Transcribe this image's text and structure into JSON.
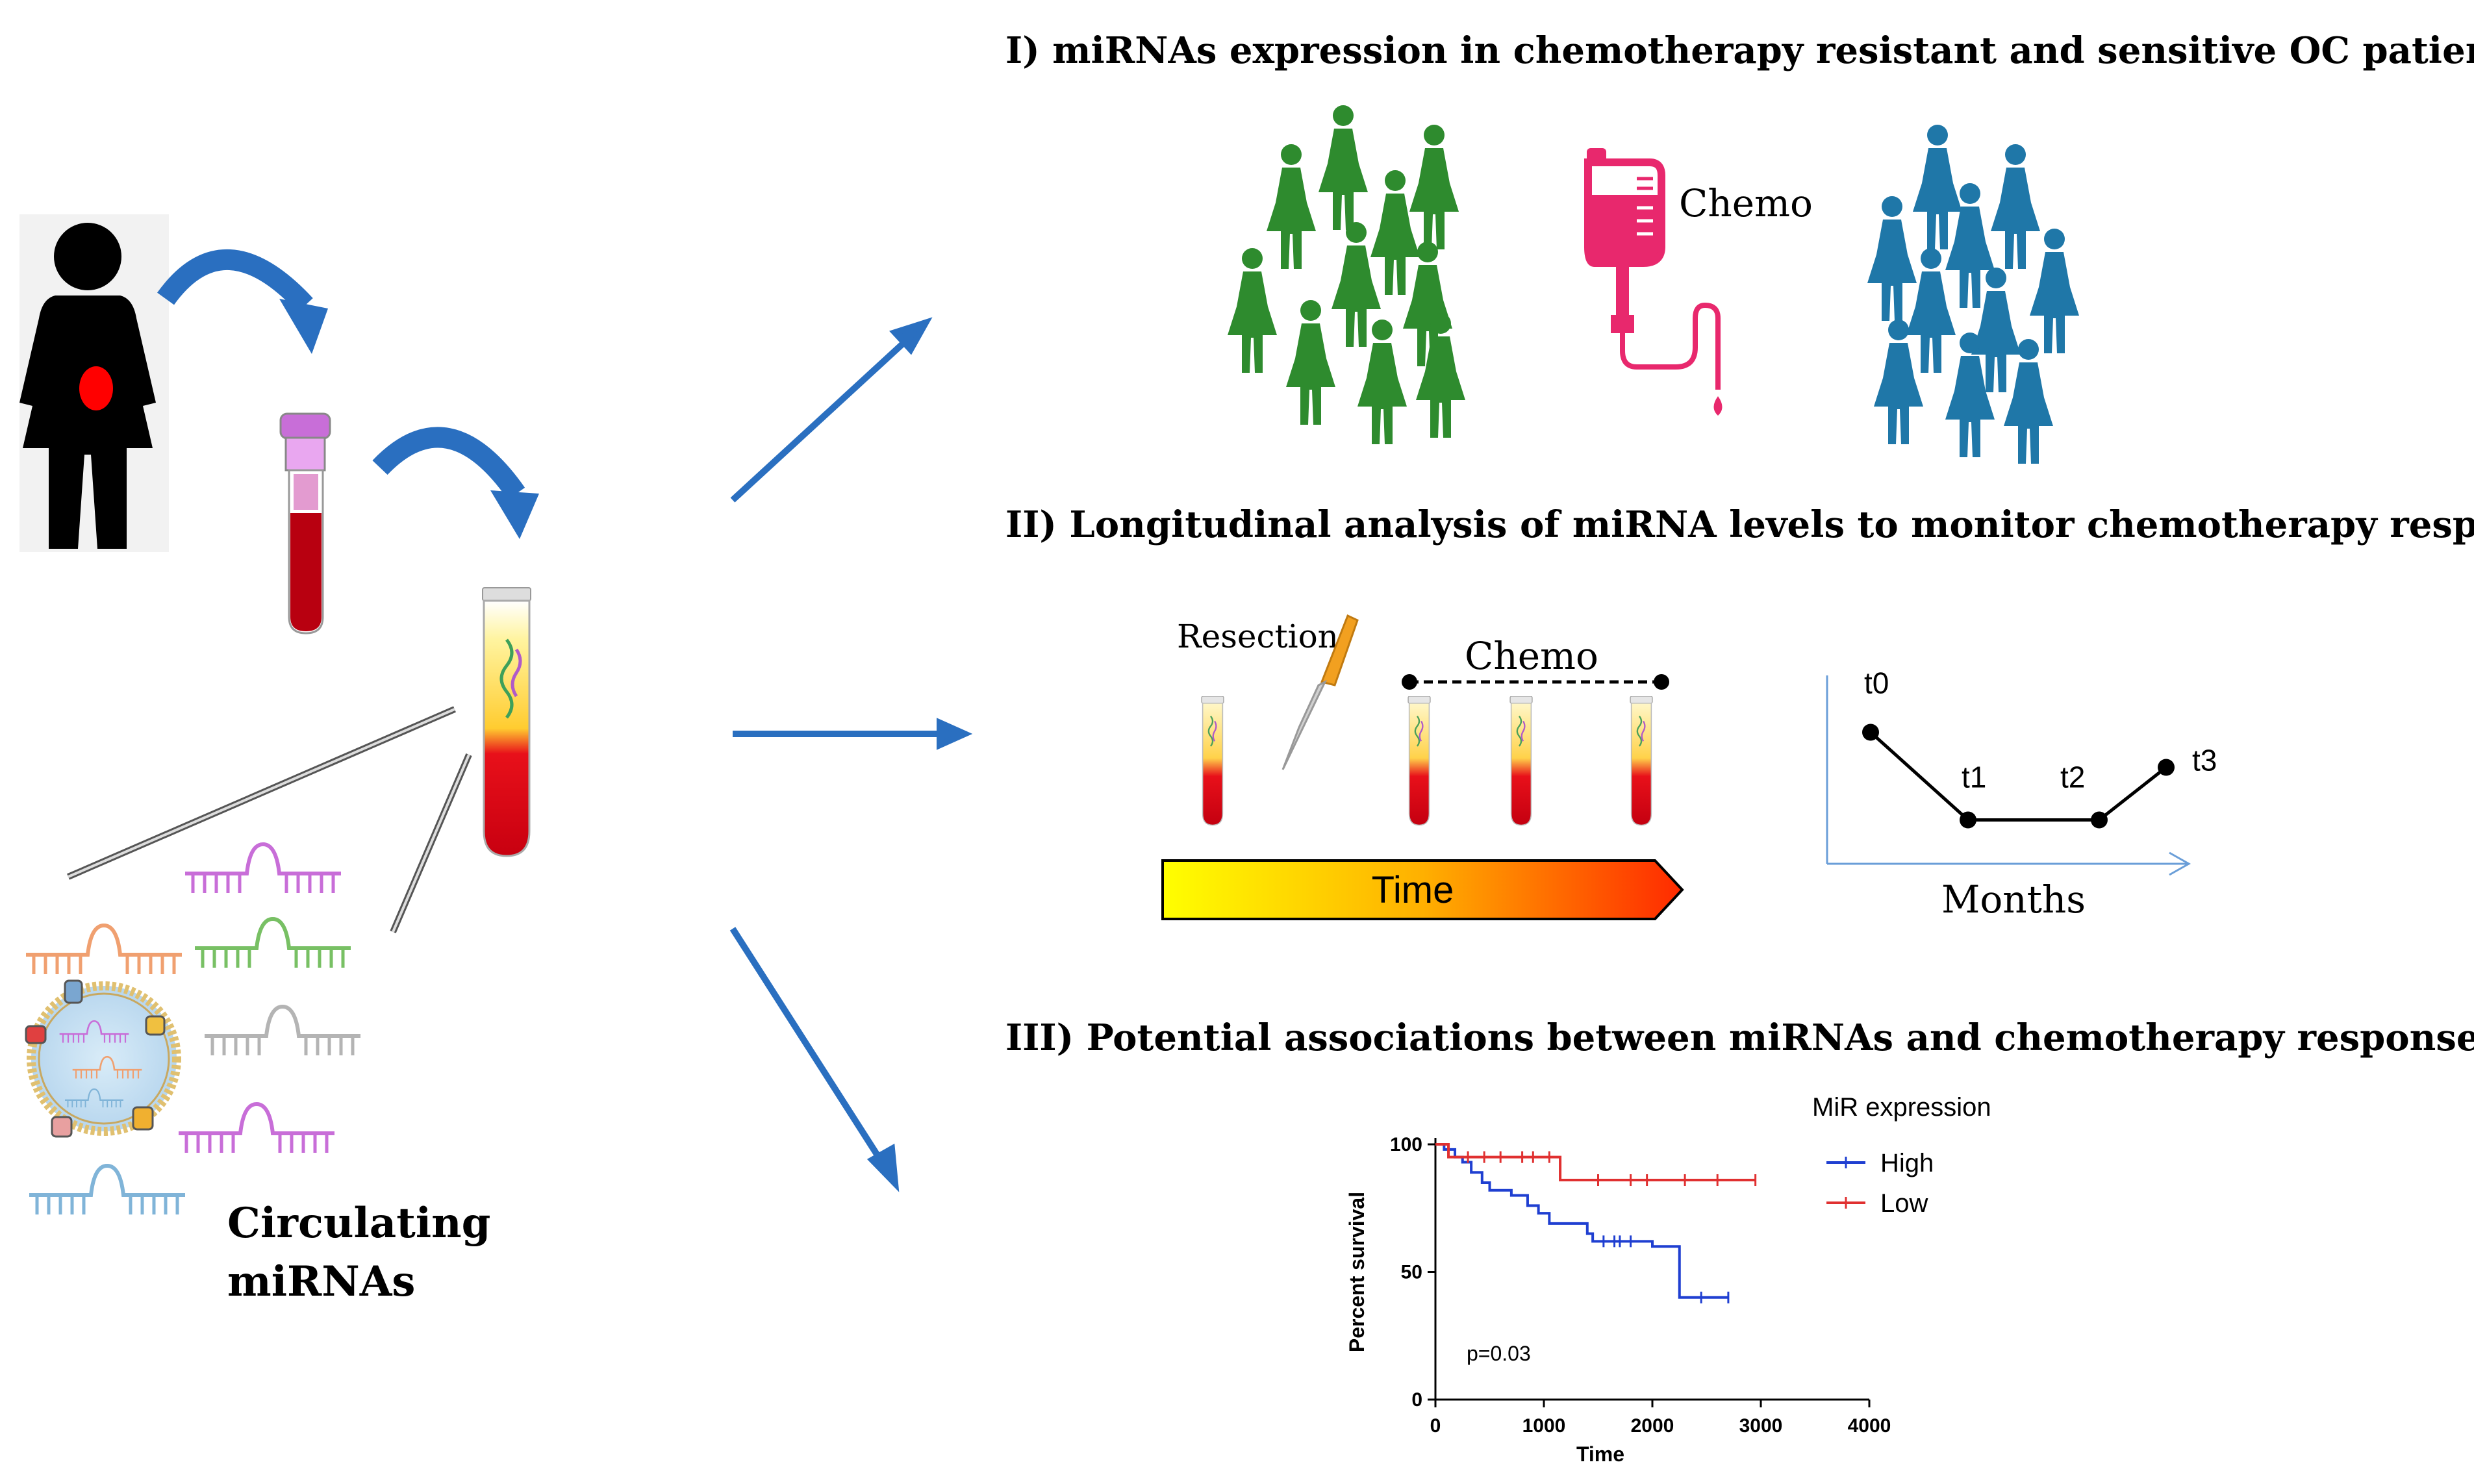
{
  "left_panel": {
    "circulating_label_line1": "Circulating",
    "circulating_label_line2": "miRNAs"
  },
  "section1": {
    "title": "I) miRNAs expression in chemotherapy resistant and sensitive OC patients",
    "chemo_label": "Chemo",
    "colors": {
      "resistant_group": "#2e8b2e",
      "sensitive_group": "#1f77a8",
      "iv_bag": "#e8286d"
    }
  },
  "section2": {
    "title": "II) Longitudinal analysis of miRNA levels to monitor chemotherapy response",
    "resection_label": "Resection",
    "chemo_label": "Chemo",
    "time_label": "Time",
    "months_label": "Months",
    "timepoints": [
      {
        "label": "t0",
        "level": 0.75
      },
      {
        "label": "t1",
        "level": 0.25
      },
      {
        "label": "t2",
        "level": 0.25
      },
      {
        "label": "t3",
        "level": 0.55
      }
    ]
  },
  "section3": {
    "title": "III) Potential associations between miRNAs and chemotherapy response"
  },
  "chart_data": {
    "type": "line",
    "title": "",
    "xlabel": "Time",
    "ylabel": "Percent survival",
    "xlim": [
      0,
      4000
    ],
    "ylim": [
      0,
      100
    ],
    "xticks": [
      0,
      1000,
      2000,
      3000,
      4000
    ],
    "yticks": [
      0,
      50,
      100
    ],
    "legend_title": "MiR expression",
    "legend_position": "top-right",
    "annotation": "p=0.03",
    "series": [
      {
        "name": "High",
        "color": "#1f3fd1",
        "steps": [
          [
            0,
            100
          ],
          [
            80,
            98
          ],
          [
            180,
            95
          ],
          [
            250,
            93
          ],
          [
            330,
            89
          ],
          [
            430,
            85
          ],
          [
            500,
            82
          ],
          [
            700,
            80
          ],
          [
            850,
            76
          ],
          [
            950,
            73
          ],
          [
            1050,
            69
          ],
          [
            1400,
            65
          ],
          [
            1450,
            62
          ],
          [
            2000,
            60
          ],
          [
            2250,
            40
          ],
          [
            2700,
            40
          ]
        ],
        "censor": [
          [
            1550,
            62
          ],
          [
            1650,
            62
          ],
          [
            1700,
            62
          ],
          [
            1800,
            62
          ],
          [
            2450,
            40
          ],
          [
            2700,
            40
          ]
        ]
      },
      {
        "name": "Low",
        "color": "#e03030",
        "steps": [
          [
            0,
            100
          ],
          [
            120,
            95
          ],
          [
            1150,
            95
          ],
          [
            1150,
            86
          ],
          [
            2950,
            86
          ]
        ],
        "censor": [
          [
            300,
            95
          ],
          [
            450,
            95
          ],
          [
            600,
            95
          ],
          [
            800,
            95
          ],
          [
            900,
            95
          ],
          [
            1050,
            95
          ],
          [
            1500,
            86
          ],
          [
            1800,
            86
          ],
          [
            1950,
            86
          ],
          [
            2300,
            86
          ],
          [
            2600,
            86
          ],
          [
            2950,
            86
          ]
        ]
      }
    ]
  }
}
